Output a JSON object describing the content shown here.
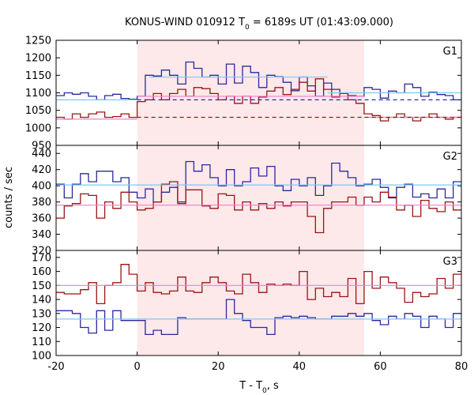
{
  "chart_data": {
    "type": "line",
    "title_parts": [
      "KONUS-WIND 010912 T",
      "0",
      " = 6189s UT (01:43:09.000)"
    ],
    "xlabel_parts": [
      "T - T",
      "0",
      ", s"
    ],
    "ylabel": "counts / sec",
    "xlim": [
      -20,
      80
    ],
    "xticks": [
      "-20",
      "0",
      "20",
      "40",
      "60",
      "80"
    ],
    "highlight_region": [
      0,
      56
    ],
    "colors": {
      "blue": "#2a2a9c",
      "red": "#9c1414",
      "light_blue": "#7fc8f0",
      "pink": "#ee80c8",
      "highlight": "#fde8ea"
    },
    "panels": [
      {
        "label": "G1",
        "ylim": [
          950,
          1250
        ],
        "yticks": [
          "950",
          "1000",
          "1050",
          "1100",
          "1150",
          "1200",
          "1250"
        ],
        "series": [
          {
            "color": "blue",
            "step_x": [
              -20,
              -18,
              -16,
              -14,
              -12,
              -10,
              -8,
              -6,
              -4,
              -2,
              0,
              2,
              4,
              6,
              8,
              10,
              12,
              14,
              16,
              18,
              20,
              22,
              24,
              26,
              28,
              30,
              32,
              34,
              36,
              38,
              40,
              42,
              44,
              46,
              48,
              50,
              52,
              54,
              56,
              58,
              60,
              62,
              64,
              66,
              68,
              70,
              72,
              74,
              76,
              78,
              80
            ],
            "step_y": [
              1092,
              1100,
              1096,
              1100,
              1090,
              1080,
              1092,
              1096,
              1084,
              1082,
              1090,
              1150,
              1148,
              1165,
              1150,
              1125,
              1188,
              1170,
              1145,
              1150,
              1125,
              1182,
              1128,
              1176,
              1158,
              1115,
              1150,
              1146,
              1130,
              1106,
              1145,
              1120,
              1090,
              1128,
              1110,
              1098,
              1092,
              1090,
              1115,
              1110,
              1085,
              1105,
              1100,
              1125,
              1115,
              1090,
              1102,
              1095,
              1092,
              1080
            ]
          },
          {
            "color": "red",
            "step_x": [
              -20,
              -18,
              -16,
              -14,
              -12,
              -10,
              -8,
              -6,
              -4,
              -2,
              0,
              2,
              4,
              6,
              8,
              10,
              12,
              14,
              16,
              18,
              20,
              22,
              24,
              26,
              28,
              30,
              32,
              34,
              36,
              38,
              40,
              42,
              44,
              46,
              48,
              50,
              52,
              54,
              56,
              58,
              60,
              62,
              64,
              66,
              68,
              70,
              72,
              74,
              76,
              78,
              80
            ],
            "step_y": [
              1030,
              1025,
              1040,
              1030,
              1040,
              1045,
              1030,
              1032,
              1040,
              1030,
              1075,
              1080,
              1098,
              1080,
              1098,
              1110,
              1090,
              1115,
              1112,
              1098,
              1080,
              1090,
              1070,
              1090,
              1070,
              1088,
              1105,
              1115,
              1095,
              1110,
              1130,
              1105,
              1140,
              1110,
              1088,
              1098,
              1080,
              1070,
              1040,
              1035,
              1020,
              1030,
              1040,
              1030,
              1020,
              1030,
              1040,
              1030,
              1025,
              1030
            ]
          },
          {
            "color": "light_blue",
            "segments": [
              [
                -20,
                1080,
                0,
                1080
              ],
              [
                3,
                1145,
                47,
                1145
              ],
              [
                47,
                1100,
                80,
                1100
              ]
            ]
          },
          {
            "color": "pink",
            "segments": [
              [
                -20,
                1025,
                0,
                1025
              ],
              [
                0,
                1090,
                56,
                1090
              ],
              [
                56,
                1030,
                80,
                1030
              ]
            ]
          },
          {
            "color": "blue",
            "dashed": true,
            "segments": [
              [
                0,
                1080,
                80,
                1080
              ]
            ]
          },
          {
            "color": "red",
            "dashed": true,
            "segments": [
              [
                0,
                1030,
                80,
                1030
              ]
            ]
          }
        ]
      },
      {
        "label": "G2",
        "ylim": [
          320,
          450
        ],
        "yticks": [
          "320",
          "340",
          "360",
          "380",
          "400",
          "420",
          "440"
        ],
        "series": [
          {
            "color": "blue",
            "step_x": [
              -20,
              -18,
              -16,
              -14,
              -12,
              -10,
              -8,
              -6,
              -4,
              -2,
              0,
              2,
              4,
              6,
              8,
              10,
              12,
              14,
              16,
              18,
              20,
              22,
              24,
              26,
              28,
              30,
              32,
              34,
              36,
              38,
              40,
              42,
              44,
              46,
              48,
              50,
              52,
              54,
              56,
              58,
              60,
              62,
              64,
              66,
              68,
              70,
              72,
              74,
              76,
              78,
              80
            ],
            "step_y": [
              402,
              385,
              402,
              415,
              405,
              418,
              418,
              405,
              410,
              392,
              385,
              396,
              380,
              392,
              398,
              380,
              430,
              418,
              426,
              410,
              400,
              420,
              400,
              405,
              422,
              412,
              424,
              400,
              394,
              408,
              400,
              410,
              388,
              400,
              428,
              418,
              410,
              400,
              402,
              408,
              398,
              385,
              398,
              402,
              386,
              390,
              385,
              396,
              385,
              405
            ]
          },
          {
            "color": "red",
            "step_x": [
              -20,
              -18,
              -16,
              -14,
              -12,
              -10,
              -8,
              -6,
              -4,
              -2,
              0,
              2,
              4,
              6,
              8,
              10,
              12,
              14,
              16,
              18,
              20,
              22,
              24,
              26,
              28,
              30,
              32,
              34,
              36,
              38,
              40,
              42,
              44,
              46,
              48,
              50,
              52,
              54,
              56,
              58,
              60,
              62,
              64,
              66,
              68,
              70,
              72,
              74,
              76,
              78,
              80
            ],
            "step_y": [
              360,
              375,
              378,
              390,
              388,
              360,
              380,
              372,
              392,
              380,
              370,
              372,
              380,
              402,
              405,
              378,
              395,
              395,
              375,
              372,
              390,
              388,
              370,
              380,
              370,
              378,
              372,
              380,
              375,
              380,
              380,
              362,
              342,
              372,
              380,
              380,
              386,
              376,
              386,
              380,
              392,
              386,
              370,
              376,
              362,
              382,
              372,
              368,
              380,
              370
            ]
          },
          {
            "color": "light_blue",
            "segments": [
              [
                -20,
                401,
                80,
                401
              ]
            ]
          },
          {
            "color": "pink",
            "segments": [
              [
                -20,
                376,
                80,
                376
              ]
            ]
          }
        ]
      },
      {
        "label": "G3",
        "ylim": [
          100,
          175
        ],
        "yticks": [
          "100",
          "110",
          "120",
          "130",
          "140",
          "150",
          "160",
          "170"
        ],
        "series": [
          {
            "color": "blue",
            "step_x": [
              -20,
              -18,
              -16,
              -14,
              -12,
              -10,
              -8,
              -6,
              -4,
              -2,
              0,
              2,
              4,
              6,
              8,
              10,
              12,
              14,
              16,
              18,
              20,
              22,
              24,
              26,
              28,
              30,
              32,
              34,
              36,
              38,
              40,
              42,
              44,
              46,
              48,
              50,
              52,
              54,
              56,
              58,
              60,
              62,
              64,
              66,
              68,
              70,
              72,
              74,
              76,
              78,
              80
            ],
            "step_y": [
              132,
              132,
              130,
              120,
              116,
              132,
              118,
              132,
              125,
              125,
              125,
              115,
              118,
              115,
              115,
              127,
              126,
              126,
              126,
              126,
              126,
              140,
              130,
              125,
              120,
              120,
              115,
              127,
              128,
              127,
              128,
              127,
              126,
              126,
              128,
              128,
              130,
              128,
              130,
              125,
              122,
              128,
              126,
              130,
              128,
              120,
              128,
              126,
              120,
              130
            ]
          },
          {
            "color": "red",
            "step_x": [
              -20,
              -18,
              -16,
              -14,
              -12,
              -10,
              -8,
              -6,
              -4,
              -2,
              0,
              2,
              4,
              6,
              8,
              10,
              12,
              14,
              16,
              18,
              20,
              22,
              24,
              26,
              28,
              30,
              32,
              34,
              36,
              38,
              40,
              42,
              44,
              46,
              48,
              50,
              52,
              54,
              56,
              58,
              60,
              62,
              64,
              66,
              68,
              70,
              72,
              74,
              76,
              78,
              80
            ],
            "step_y": [
              145,
              144,
              144,
              147,
              152,
              137,
              150,
              152,
              165,
              158,
              146,
              152,
              145,
              144,
              146,
              156,
              146,
              145,
              152,
              156,
              152,
              146,
              144,
              158,
              152,
              145,
              151,
              150,
              151,
              150,
              160,
              140,
              148,
              142,
              145,
              142,
              155,
              137,
              160,
              148,
              156,
              152,
              148,
              138,
              145,
              142,
              144,
              155,
              148,
              158
            ]
          },
          {
            "color": "light_blue",
            "segments": [
              [
                -20,
                126,
                80,
                126
              ]
            ]
          },
          {
            "color": "pink",
            "segments": [
              [
                -20,
                150,
                80,
                150
              ]
            ]
          }
        ]
      }
    ]
  }
}
